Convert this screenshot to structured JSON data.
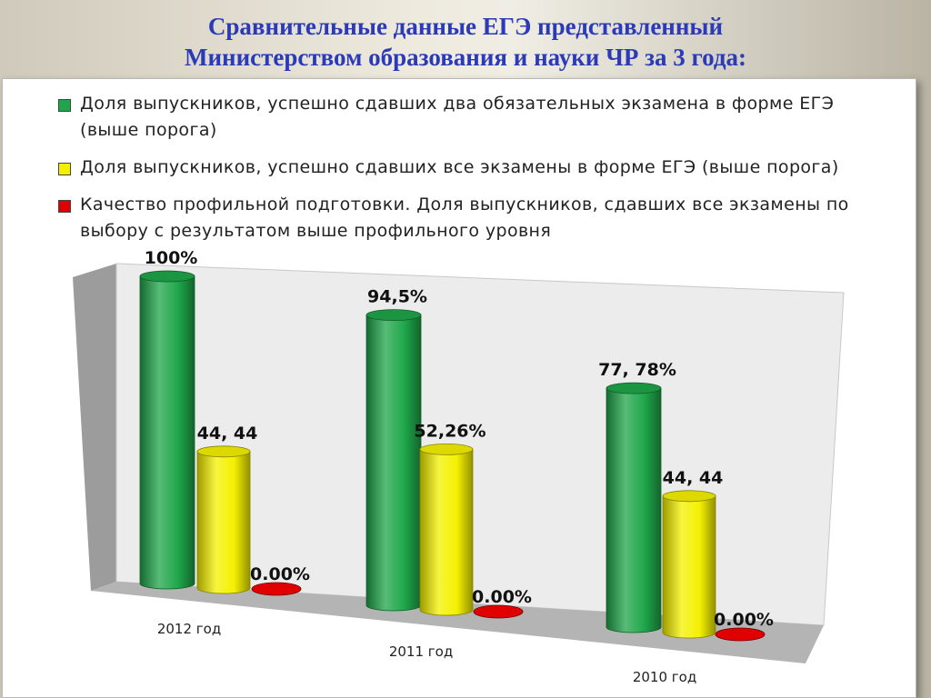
{
  "slide": {
    "title_line1": "Сравнительные данные ЕГЭ представленный",
    "title_line2": "Министерством образования и науки ЧР  за 3 года:"
  },
  "chart_data": {
    "type": "bar",
    "title": "",
    "categories": [
      "2012 год",
      "2011 год",
      "2010 год"
    ],
    "series": [
      {
        "name": "Доля выпускников, успешно сдавших два обязательных экзамена в форме ЕГЭ (выше порога)",
        "color": "#1fa64a",
        "values": [
          100,
          94.5,
          77.78
        ],
        "labels": [
          "100%",
          "94,5%",
          "77, 78%"
        ]
      },
      {
        "name": "Доля выпускников, успешно сдавших все экзамены в форме ЕГЭ (выше порога)",
        "color": "#f4f000",
        "values": [
          44.44,
          52.26,
          44.44
        ],
        "labels": [
          "44, 44",
          "52,26%",
          "44, 44"
        ]
      },
      {
        "name": "Качество профильной подготовки. Доля выпускников, сдавших все экзамены по выбору с результатом выше профильного уровня",
        "color": "#e00000",
        "values": [
          0,
          0,
          0
        ],
        "labels": [
          "0.00%",
          "0.00%",
          "0.00%"
        ]
      }
    ],
    "ylim": [
      0,
      100
    ],
    "legend_position": "top",
    "grid": false
  }
}
